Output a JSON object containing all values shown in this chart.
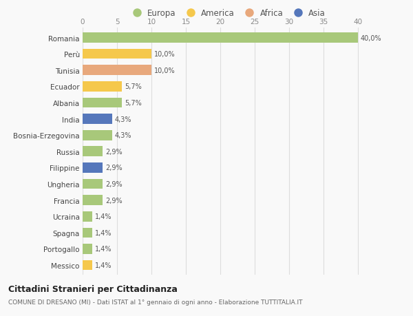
{
  "countries": [
    "Romania",
    "Perù",
    "Tunisia",
    "Ecuador",
    "Albania",
    "India",
    "Bosnia-Erzegovina",
    "Russia",
    "Filippine",
    "Ungheria",
    "Francia",
    "Ucraina",
    "Spagna",
    "Portogallo",
    "Messico"
  ],
  "values": [
    40.0,
    10.0,
    10.0,
    5.7,
    5.7,
    4.3,
    4.3,
    2.9,
    2.9,
    2.9,
    2.9,
    1.4,
    1.4,
    1.4,
    1.4
  ],
  "labels": [
    "40,0%",
    "10,0%",
    "10,0%",
    "5,7%",
    "5,7%",
    "4,3%",
    "4,3%",
    "2,9%",
    "2,9%",
    "2,9%",
    "2,9%",
    "1,4%",
    "1,4%",
    "1,4%",
    "1,4%"
  ],
  "continents": [
    "Europa",
    "America",
    "Africa",
    "America",
    "Europa",
    "Asia",
    "Europa",
    "Europa",
    "Asia",
    "Europa",
    "Europa",
    "Europa",
    "Europa",
    "Europa",
    "America"
  ],
  "continent_colors": {
    "Europa": "#a8c87a",
    "America": "#f5c84c",
    "Africa": "#e8a87c",
    "Asia": "#5577bb"
  },
  "legend_order": [
    "Europa",
    "America",
    "Africa",
    "Asia"
  ],
  "title": "Cittadini Stranieri per Cittadinanza",
  "subtitle": "COMUNE DI DRESANO (MI) - Dati ISTAT al 1° gennaio di ogni anno - Elaborazione TUTTITALIA.IT",
  "xlim": [
    0,
    42
  ],
  "xticks": [
    0,
    5,
    10,
    15,
    20,
    25,
    30,
    35,
    40
  ],
  "background_color": "#f9f9f9",
  "grid_color": "#dddddd",
  "bar_height": 0.62
}
